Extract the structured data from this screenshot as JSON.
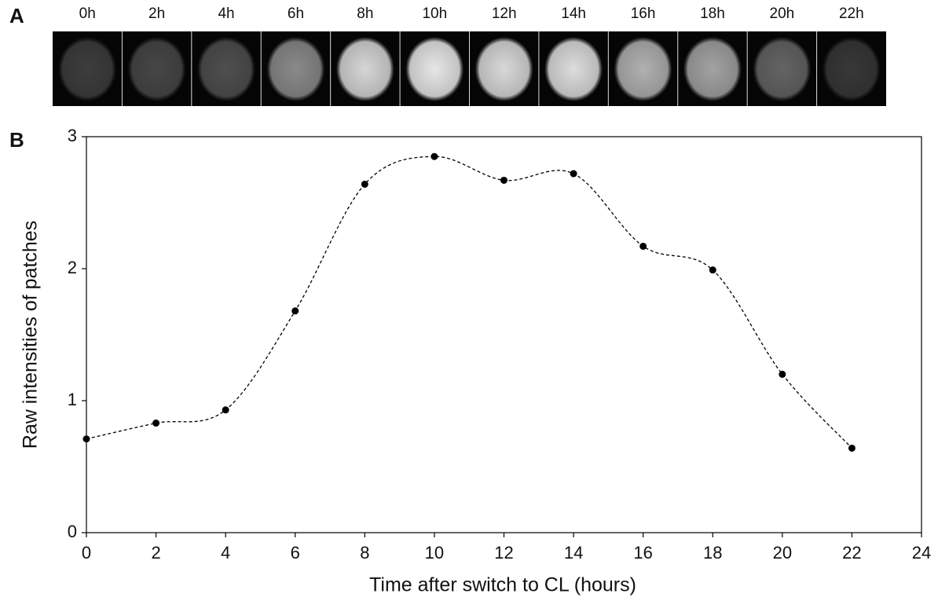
{
  "panel_labels": [
    "A",
    "B"
  ],
  "image_strip": {
    "labels": [
      "0h",
      "2h",
      "4h",
      "6h",
      "8h",
      "10h",
      "12h",
      "14h",
      "16h",
      "18h",
      "20h",
      "22h"
    ]
  },
  "chart_data": {
    "type": "line",
    "xlabel": "Time after switch to CL (hours)",
    "ylabel": "Raw intensities of patches",
    "x": [
      0,
      2,
      4,
      6,
      8,
      10,
      12,
      14,
      16,
      18,
      20,
      22
    ],
    "values": [
      0.71,
      0.83,
      0.93,
      1.68,
      2.64,
      2.85,
      2.67,
      2.72,
      2.17,
      1.99,
      1.2,
      0.64
    ],
    "color": "#000000",
    "xlim": [
      0,
      24
    ],
    "xticks": [
      0,
      2,
      4,
      6,
      8,
      10,
      12,
      14,
      16,
      18,
      20,
      22,
      24
    ],
    "ylim": [
      0,
      3
    ],
    "yticks": [
      0,
      1,
      2,
      3
    ],
    "line_style": "dashed",
    "smooth": true,
    "grid": false
  }
}
